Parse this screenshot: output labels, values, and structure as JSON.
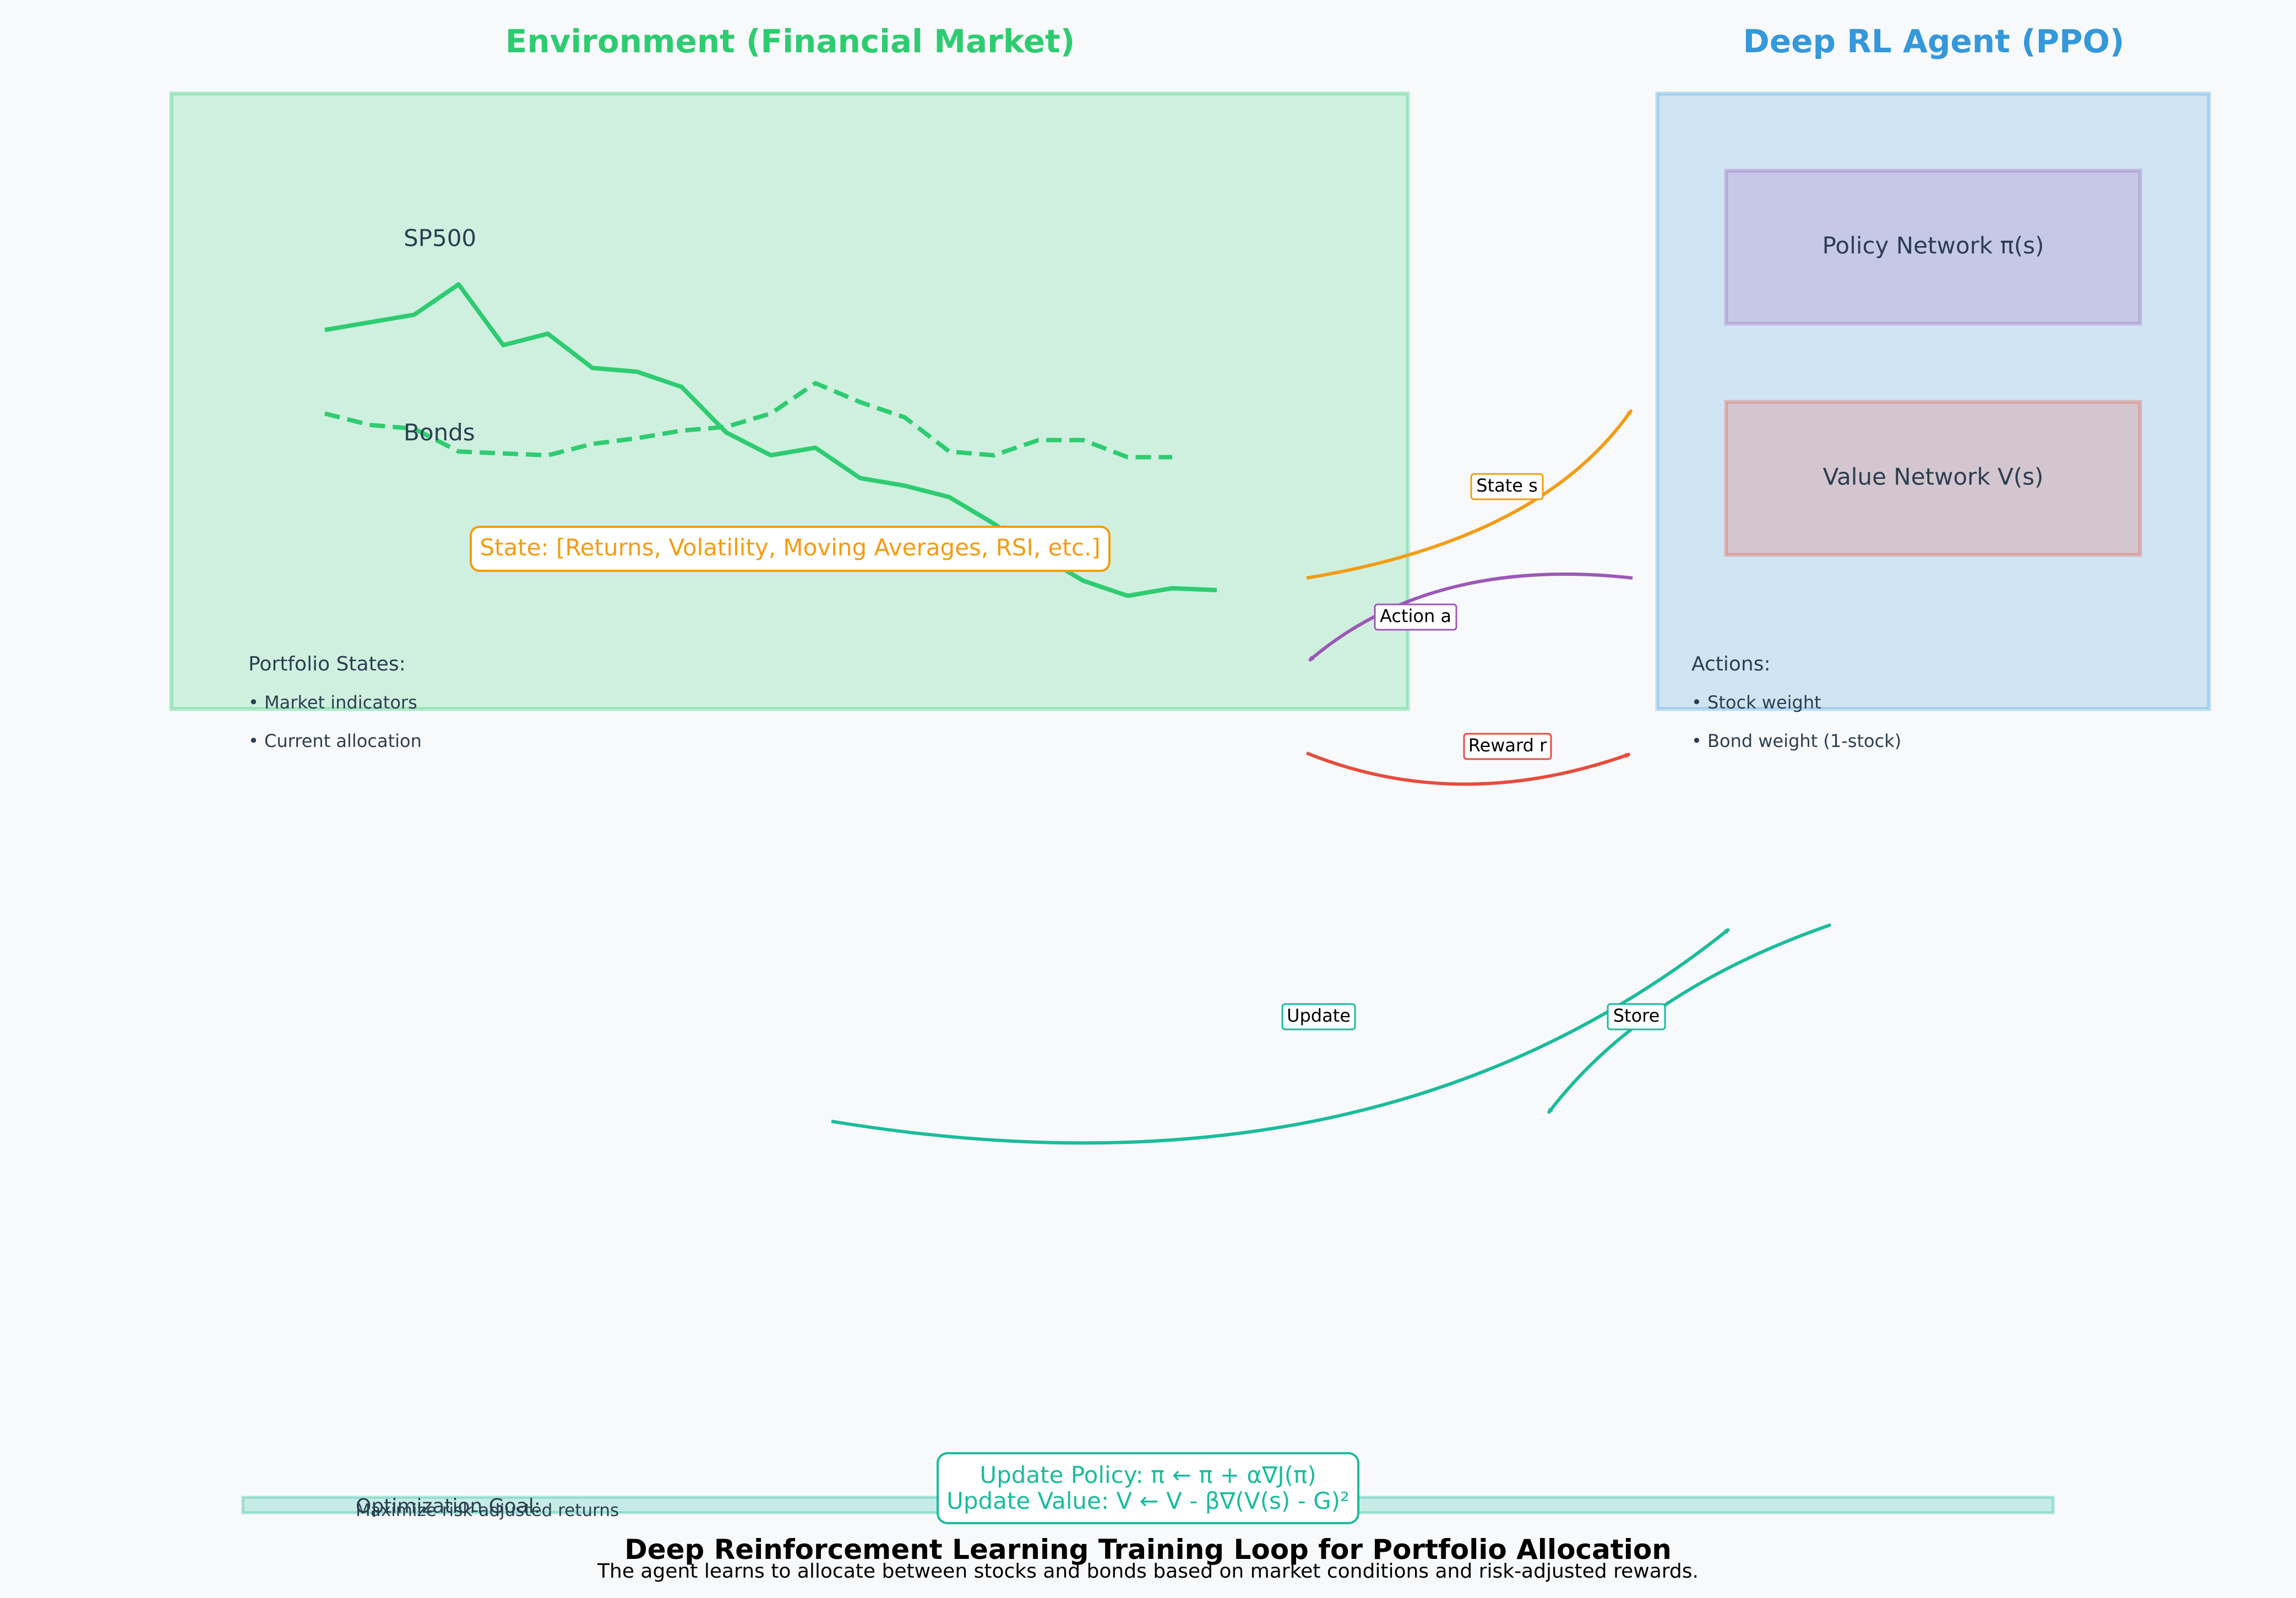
{
  "header": {
    "environment_title": "Environment (Financial Market)",
    "agent_title": "Deep RL Agent (PPO)"
  },
  "environment": {
    "series": [
      {
        "name": "SP500",
        "values": [
          0.74,
          0.76,
          0.78,
          0.86,
          0.7,
          0.73,
          0.64,
          0.63,
          0.59,
          0.47,
          0.41,
          0.43,
          0.35,
          0.33,
          0.3,
          0.23,
          0.15,
          0.08,
          0.04,
          0.06,
          0.055
        ]
      },
      {
        "name": "Bonds",
        "values": [
          0.52,
          0.49,
          0.48,
          0.42,
          0.415,
          0.41,
          0.44,
          0.455,
          0.475,
          0.485,
          0.52,
          0.6,
          0.55,
          0.51,
          0.42,
          0.41,
          0.45,
          0.45,
          0.405,
          0.405
        ]
      }
    ],
    "state_label": "State: [Returns, Volatility, Moving Averages, RSI, etc.]",
    "portfolio_heading": "Portfolio States:",
    "portfolio_items": [
      "• Market indicators",
      "• Current allocation"
    ]
  },
  "agent": {
    "policy_network": "Policy Network π(s)",
    "value_network": "Value Network V(s)",
    "actions_heading": "Actions:",
    "action_items": [
      "• Stock weight",
      "• Bond weight (1-stock)"
    ]
  },
  "arrows": {
    "state": "State s",
    "action": "Action a",
    "reward": "Reward r",
    "update": "Update",
    "store": "Store"
  },
  "footer": {
    "update_policy": "Update Policy: π ← π + α∇J(π)",
    "update_value": "Update Value: V ← V - β∇(V(s) - G)²",
    "goal_heading": "Optimization Goal:",
    "goal_text": "Maximize risk-adjusted returns",
    "title": "Deep Reinforcement Learning Training Loop for Portfolio Allocation",
    "subtitle": "The agent learns to allocate between stocks and bonds based on market conditions and risk-adjusted rewards."
  },
  "colors": {
    "environment": "#2ecc71",
    "agent": "#3498db",
    "state": "#f39c12",
    "action": "#9b59b6",
    "reward": "#e74c3c",
    "update": "#1abc9c"
  }
}
